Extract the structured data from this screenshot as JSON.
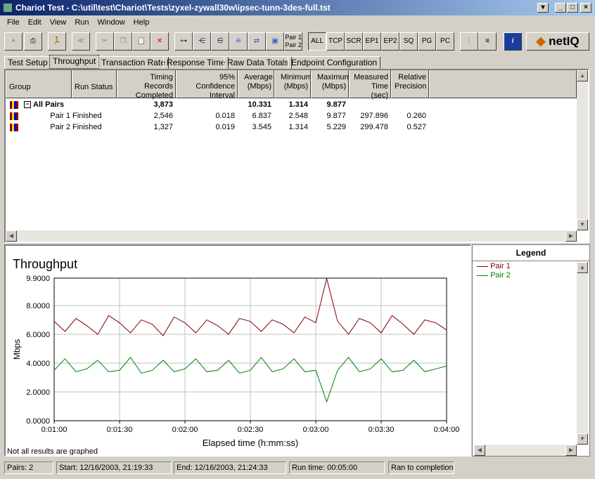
{
  "window": {
    "title": "Chariot Test - C:\\util\\test\\Chariot\\Tests\\zyxel-zywall30w\\ipsec-tunn-3des-full.tst"
  },
  "menu": [
    "File",
    "Edit",
    "View",
    "Run",
    "Window",
    "Help"
  ],
  "toolbar": {
    "pair_label": "Pair 1\nPair 2",
    "filters": [
      "ALL",
      "TCP",
      "SCR",
      "EP1",
      "EP2",
      "SQ",
      "PG",
      "PC"
    ],
    "logo": "netIQ"
  },
  "tabs": [
    "Test Setup",
    "Throughput",
    "Transaction Rate",
    "Response Time",
    "Raw Data Totals",
    "Endpoint Configuration"
  ],
  "active_tab": "Throughput",
  "table": {
    "headers": [
      "Group",
      "Run Status",
      "Timing Records Completed",
      "95% Confidence Interval",
      "Average (Mbps)",
      "Minimum (Mbps)",
      "Maximum (Mbps)",
      "Measured Time (sec)",
      "Relative Precision"
    ],
    "rows": [
      {
        "group": "All Pairs",
        "status": "",
        "records": "3,873",
        "ci": "",
        "avg": "10.331",
        "min": "1.314",
        "max": "9.877",
        "time": "",
        "precision": ""
      },
      {
        "group": "Pair 1",
        "status": "Finished",
        "records": "2,546",
        "ci": "0.018",
        "avg": "6.837",
        "min": "2.548",
        "max": "9.877",
        "time": "297.896",
        "precision": "0.260"
      },
      {
        "group": "Pair 2",
        "status": "Finished",
        "records": "1,327",
        "ci": "0.019",
        "avg": "3.545",
        "min": "1.314",
        "max": "5.229",
        "time": "299.478",
        "precision": "0.527"
      }
    ]
  },
  "chart_data": {
    "type": "line",
    "title": "Throughput",
    "xlabel": "Elapsed time (h:mm:ss)",
    "ylabel": "Mbps",
    "xlim": [
      "0:01:00",
      "0:04:00"
    ],
    "ylim": [
      0,
      9.9
    ],
    "yticks": [
      "0.0000",
      "2.0000",
      "4.0000",
      "6.0000",
      "8.0000",
      "9.9000"
    ],
    "xticks": [
      "0:01:00",
      "0:01:30",
      "0:02:00",
      "0:02:30",
      "0:03:00",
      "0:03:30",
      "0:04:00"
    ],
    "grid": true,
    "x_seconds_step": 5,
    "series": [
      {
        "name": "Pair 1",
        "color": "#800000",
        "values": [
          6.9,
          6.2,
          7.1,
          6.6,
          6.0,
          7.3,
          6.8,
          6.1,
          7.0,
          6.7,
          5.9,
          7.2,
          6.8,
          6.1,
          7.0,
          6.6,
          6.0,
          7.1,
          6.9,
          6.2,
          7.0,
          6.7,
          6.1,
          7.2,
          6.8,
          9.877,
          6.9,
          6.0,
          7.1,
          6.8,
          6.1,
          7.3,
          6.7,
          6.0,
          7.0,
          6.8,
          6.3
        ]
      },
      {
        "name": "Pair 2",
        "color": "#008000",
        "values": [
          3.5,
          4.3,
          3.4,
          3.6,
          4.2,
          3.4,
          3.5,
          4.4,
          3.3,
          3.5,
          4.2,
          3.4,
          3.6,
          4.3,
          3.4,
          3.5,
          4.2,
          3.3,
          3.5,
          4.4,
          3.4,
          3.6,
          4.3,
          3.4,
          3.5,
          1.314,
          3.5,
          4.4,
          3.4,
          3.6,
          4.3,
          3.4,
          3.5,
          4.2,
          3.4,
          3.6,
          3.8
        ]
      }
    ],
    "note": "Not all results are graphed"
  },
  "legend": {
    "title": "Legend"
  },
  "status": [
    "Pairs: 2",
    "Start: 12/16/2003, 21:19:33",
    "End: 12/16/2003, 21:24:33",
    "Run time: 00:05:00",
    "Ran to completion"
  ]
}
